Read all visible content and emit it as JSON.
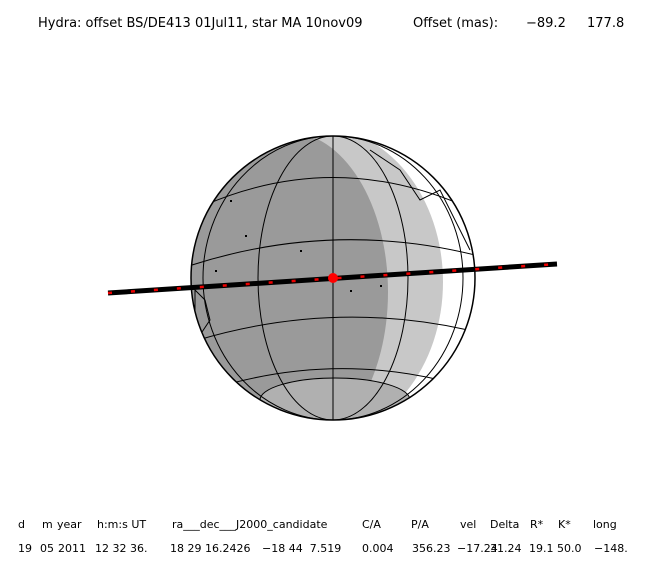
{
  "header": {
    "title": "Hydra: offset BS/DE413 01Jul11, star MA 10nov09",
    "offset_label": "Offset (mas):",
    "offset_x": "−89.2",
    "offset_y": "177.8"
  },
  "table": {
    "columns": [
      "d",
      "m",
      "year",
      "h:m:s UT",
      "ra___dec___J2000_candidate",
      "C/A",
      "P/A",
      "vel",
      "Delta",
      "R*",
      "K*",
      "long"
    ],
    "values": [
      "19",
      "05",
      "2011",
      "12 32 36.",
      "18 29 16.2426",
      "−18 44  7.519",
      "0.004",
      "356.23",
      "−17.24",
      "31.24",
      "19.1",
      "50.0",
      "−148."
    ]
  }
}
